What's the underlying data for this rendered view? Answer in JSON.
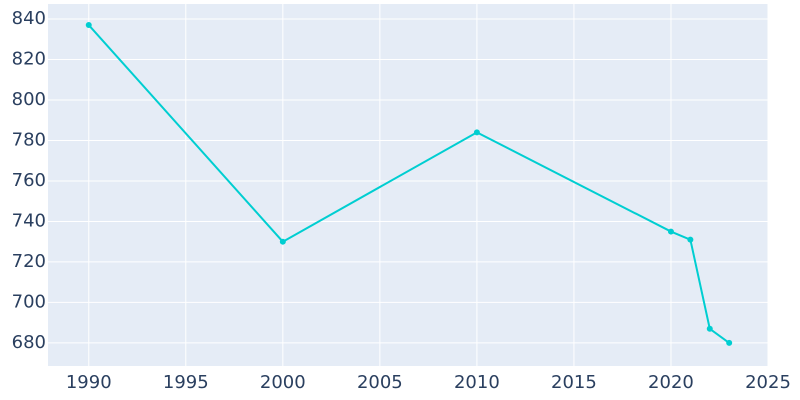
{
  "chart_data": {
    "type": "line",
    "x": [
      1990,
      2000,
      2010,
      2020,
      2021,
      2022,
      2023
    ],
    "values": [
      837,
      730,
      784,
      735,
      731,
      687,
      680
    ],
    "color": "#00ced1",
    "xlim": [
      1987.9,
      2025
    ],
    "xticks": [
      1990,
      1995,
      2000,
      2005,
      2010,
      2015,
      2020,
      2025
    ],
    "ylim": [
      668.6,
      847.4
    ],
    "yticks": [
      680,
      700,
      720,
      740,
      760,
      780,
      800,
      820,
      840
    ],
    "grid": true
  }
}
